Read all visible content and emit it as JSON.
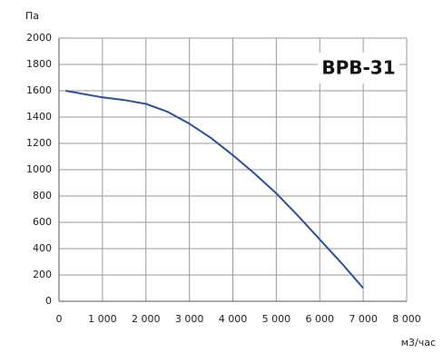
{
  "chart_data": {
    "type": "line",
    "title": "ВРВ-31",
    "y_label": "Па",
    "x_label": "м3/час",
    "x": [
      150,
      1000,
      1500,
      2000,
      2500,
      3000,
      3500,
      4000,
      4500,
      5000,
      5500,
      6000,
      6500,
      7000
    ],
    "series": [
      {
        "color": "#2d4f9c",
        "values": [
          1600,
          1550,
          1530,
          1500,
          1440,
          1350,
          1240,
          1110,
          970,
          820,
          650,
          470,
          290,
          100
        ]
      }
    ],
    "xlim": [
      0,
      8000
    ],
    "ylim": [
      0,
      2000
    ],
    "xticks": [
      0,
      {
        "value": 1000,
        "label": "1 000"
      },
      {
        "value": 2000,
        "label": "2 000"
      },
      {
        "value": 3000,
        "label": "3 000"
      },
      {
        "value": 4000,
        "label": "4 000"
      },
      {
        "value": 5000,
        "label": "5 000"
      },
      {
        "value": 6000,
        "label": "6 000"
      },
      {
        "value": 7000,
        "label": "7 000"
      },
      {
        "value": 8000,
        "label": "8 000"
      }
    ],
    "yticks": [
      0,
      200,
      400,
      600,
      800,
      1000,
      1200,
      1400,
      1600,
      1800,
      2000
    ],
    "grid": true
  }
}
